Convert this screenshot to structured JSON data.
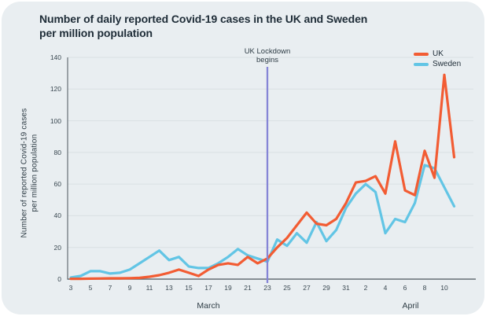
{
  "card": {
    "background": "#e9eef1"
  },
  "text_colors": {
    "title": "#1e2c37",
    "axis_text": "#3a4851",
    "label_text": "#2e3c45"
  },
  "chart_data": {
    "type": "line",
    "title": "Number of daily reported Covid-19 cases in the UK and Sweden per million population",
    "title_lines": [
      "Number of daily reported Covid-19 cases in the UK and Sweden",
      "per million population"
    ],
    "ylabel": "Number of reported Covid-19 cases per million population",
    "ylabel_lines": [
      "Number of reported Covid-19 cases",
      "per million population"
    ],
    "xlabel": "",
    "ylim": [
      0,
      140
    ],
    "y_ticks": [
      0,
      20,
      40,
      60,
      80,
      100,
      120,
      140
    ],
    "grid": true,
    "legend_position": "top-right",
    "x": [
      "Mar 3",
      "Mar 4",
      "Mar 5",
      "Mar 6",
      "Mar 7",
      "Mar 8",
      "Mar 9",
      "Mar 10",
      "Mar 11",
      "Mar 12",
      "Mar 13",
      "Mar 14",
      "Mar 15",
      "Mar 16",
      "Mar 17",
      "Mar 18",
      "Mar 19",
      "Mar 20",
      "Mar 21",
      "Mar 22",
      "Mar 23",
      "Mar 24",
      "Mar 25",
      "Mar 26",
      "Mar 27",
      "Mar 28",
      "Mar 29",
      "Mar 30",
      "Mar 31",
      "Apr 1",
      "Apr 2",
      "Apr 3",
      "Apr 4",
      "Apr 5",
      "Apr 6",
      "Apr 7",
      "Apr 8",
      "Apr 9",
      "Apr 10",
      "Apr 11"
    ],
    "x_tick_labels": [
      "3",
      "5",
      "7",
      "9",
      "11",
      "13",
      "15",
      "17",
      "19",
      "21",
      "23",
      "25",
      "27",
      "29",
      "31",
      "2",
      "4",
      "6",
      "8",
      "10"
    ],
    "month_labels": [
      "March",
      "April"
    ],
    "series": [
      {
        "name": "UK",
        "color": "#f25c33",
        "values": [
          0.2,
          0.2,
          0.3,
          0.4,
          0.5,
          0.5,
          0.6,
          0.8,
          1.5,
          2.5,
          4,
          6,
          4,
          2,
          6,
          9,
          10,
          9,
          14,
          10,
          13,
          20,
          26,
          34,
          42,
          35,
          34,
          38,
          48,
          61,
          62,
          65,
          54,
          87,
          56,
          53,
          81,
          64,
          129,
          77
        ]
      },
      {
        "name": "Sweden",
        "color": "#62c5e5",
        "values": [
          1,
          2,
          5,
          5,
          3.5,
          4,
          6,
          10,
          14,
          18,
          12,
          14,
          8,
          7,
          7,
          10,
          14,
          19,
          15,
          13,
          11,
          25,
          21,
          29,
          23,
          36,
          24,
          31,
          45,
          54,
          60,
          55,
          29,
          38,
          36,
          48,
          72,
          70,
          58,
          46
        ]
      }
    ],
    "annotation": {
      "label": "UK Lockdown begins",
      "x": "Mar 23",
      "color": "#8585d6"
    },
    "axis_color": "#666f75",
    "grid_color": "#d9e0e3"
  }
}
